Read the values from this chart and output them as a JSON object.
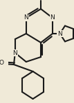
{
  "background_color": "#f0ead8",
  "bond_color": "#1a1a1a",
  "atom_color": "#1a1a1a",
  "line_width": 1.5,
  "figsize": [
    1.07,
    1.5
  ],
  "dpi": 100,
  "xlim": [
    0,
    107
  ],
  "ylim": [
    0,
    150
  ]
}
